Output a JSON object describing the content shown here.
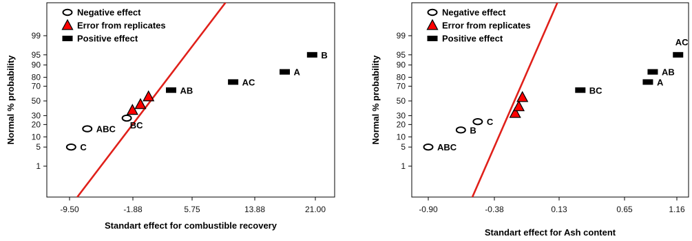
{
  "chart_data": [
    {
      "type": "scatter",
      "title": "",
      "xlabel": "Standart effect for combustible recovery",
      "ylabel": "Normal % probability",
      "xlim": [
        -9.5,
        21.0
      ],
      "x_ticks": [
        "-9.50",
        "-1.88",
        "5.75",
        "13.88",
        "21.00"
      ],
      "y_ticks": [
        "1",
        "5",
        "10",
        "20",
        "30",
        "50",
        "70",
        "80",
        "90",
        "95",
        "99"
      ],
      "y_scale": "normal-probability",
      "legend": {
        "placement": "top-left",
        "entries": [
          "Negative effect",
          "Error from replicates",
          "Positive effect"
        ]
      },
      "series": [
        {
          "name": "Negative effect",
          "marker": "ellipse-hollow",
          "color": "#000000",
          "points": [
            {
              "label": "C",
              "x": -9.3,
              "y": 5
            },
            {
              "label": "ABC",
              "x": -7.3,
              "y": 16
            },
            {
              "label": "BC",
              "x": -2.4,
              "y": 27
            }
          ]
        },
        {
          "name": "Error from replicates",
          "marker": "triangle",
          "color": "#ff0000",
          "points": [
            {
              "x": -1.7,
              "y": 37
            },
            {
              "x": -0.7,
              "y": 45
            },
            {
              "x": 0.3,
              "y": 56
            }
          ]
        },
        {
          "name": "Positive effect",
          "marker": "rectangle",
          "color": "#000000",
          "points": [
            {
              "label": "AB",
              "x": 3.1,
              "y": 65
            },
            {
              "label": "AC",
              "x": 10.8,
              "y": 75
            },
            {
              "label": "A",
              "x": 17.2,
              "y": 85
            },
            {
              "label": "B",
              "x": 20.6,
              "y": 95
            }
          ]
        }
      ],
      "fit_line": {
        "color": "#e0201a",
        "from": {
          "x": -9.2,
          "y": 0.5
        },
        "to": {
          "x": 12.2,
          "y": 99.95
        }
      }
    },
    {
      "type": "scatter",
      "title": "",
      "xlabel": "Standart effect for Ash content",
      "ylabel": "Normal % probability",
      "xlim": [
        -0.9,
        1.16
      ],
      "x_ticks": [
        "-0.90",
        "-0.38",
        "0.13",
        "0.65",
        "1.16"
      ],
      "y_ticks": [
        "1",
        "5",
        "10",
        "20",
        "30",
        "50",
        "70",
        "80",
        "90",
        "95",
        "99"
      ],
      "y_scale": "normal-probability",
      "legend": {
        "placement": "top-left",
        "entries": [
          "Negative effect",
          "Error from replicates",
          "Positive effect"
        ]
      },
      "series": [
        {
          "name": "Negative effect",
          "marker": "ellipse-hollow",
          "color": "#000000",
          "points": [
            {
              "label": "ABC",
              "x": -0.9,
              "y": 5
            },
            {
              "label": "B",
              "x": -0.63,
              "y": 15
            },
            {
              "label": "C",
              "x": -0.49,
              "y": 23
            }
          ]
        },
        {
          "name": "Error from replicates",
          "marker": "triangle",
          "color": "#ff0000",
          "points": [
            {
              "x": -0.18,
              "y": 33
            },
            {
              "x": -0.15,
              "y": 42
            },
            {
              "x": -0.12,
              "y": 55
            }
          ]
        },
        {
          "name": "Positive effect",
          "marker": "rectangle",
          "color": "#000000",
          "points": [
            {
              "label": "BC",
              "x": 0.36,
              "y": 65
            },
            {
              "label": "A",
              "x": 0.92,
              "y": 75
            },
            {
              "label": "AB",
              "x": 0.96,
              "y": 85
            },
            {
              "label": "AC",
              "x": 1.17,
              "y": 95
            }
          ]
        }
      ],
      "fit_line": {
        "color": "#e0201a",
        "from": {
          "x": -0.56,
          "y": 0.5
        },
        "to": {
          "x": 0.26,
          "y": 99.95
        }
      }
    }
  ]
}
